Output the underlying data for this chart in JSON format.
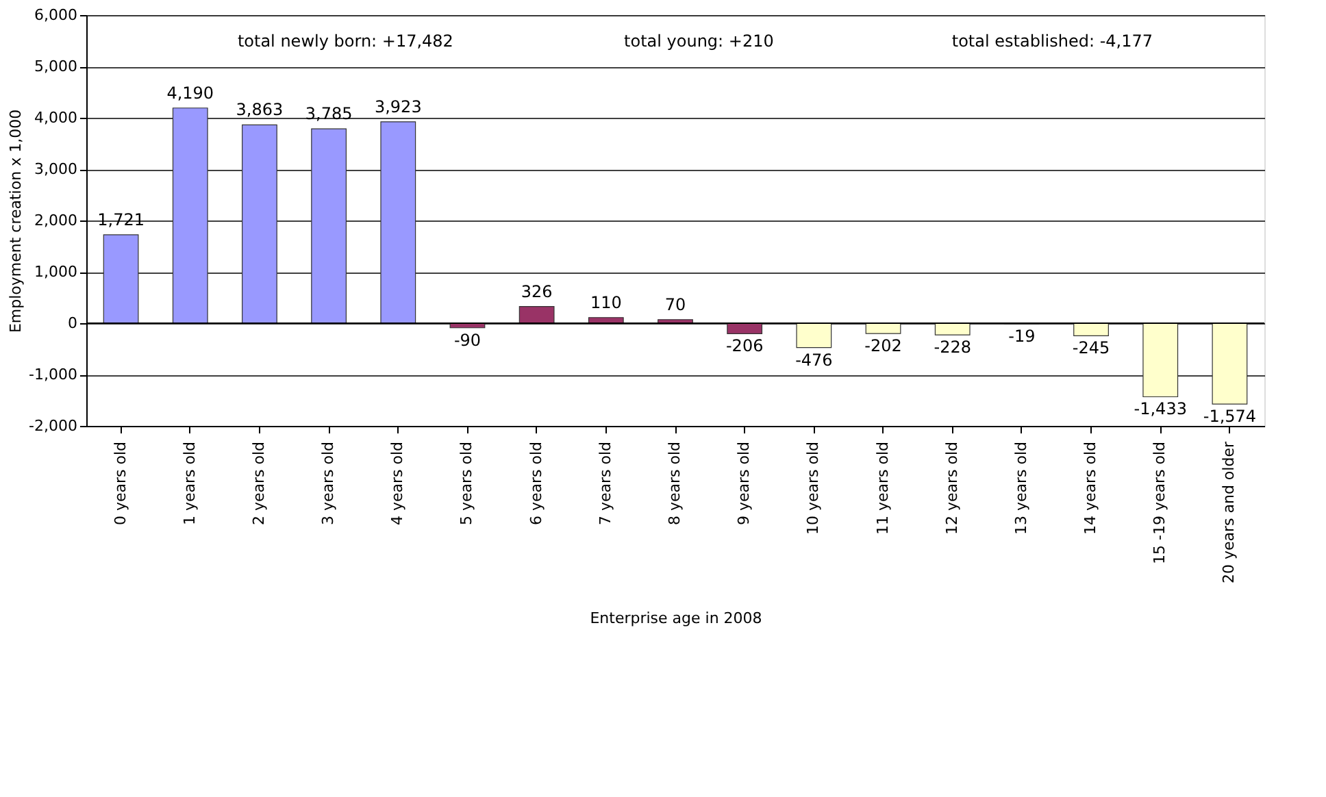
{
  "chart_data": {
    "type": "bar",
    "xlabel": "Enterprise age in 2008",
    "ylabel": "Employment creation x 1,000",
    "categories": [
      "0 years old",
      "1 years old",
      "2 years old",
      "3 years old",
      "4 years old",
      "5 years old",
      "6 years old",
      "7 years old",
      "8 years old",
      "9 years old",
      "10 years old",
      "11 years old",
      "12 years old",
      "13 years old",
      "14 years old",
      "15 -19 years old",
      "20 years and older"
    ],
    "values": [
      1721,
      4190,
      3863,
      3785,
      3923,
      -90,
      326,
      110,
      70,
      -206,
      -476,
      -202,
      -228,
      -19,
      -245,
      -1433,
      -1574
    ],
    "value_labels": [
      "1,721",
      "4,190",
      "3,863",
      "3,785",
      "3,923",
      "-90",
      "326",
      "110",
      "70",
      "-206",
      "-476",
      "-202",
      "-228",
      "-19",
      "-245",
      "-1,433",
      "-1,574"
    ],
    "colors": [
      "#9999ff",
      "#9999ff",
      "#9999ff",
      "#9999ff",
      "#9999ff",
      "#993366",
      "#993366",
      "#993366",
      "#993366",
      "#993366",
      "#ffffcc",
      "#ffffcc",
      "#ffffcc",
      "#ffffcc",
      "#ffffcc",
      "#ffffcc",
      "#ffffcc"
    ],
    "ylim": [
      -2000,
      6000
    ],
    "yticks": [
      {
        "value": -2000,
        "label": "-2,000"
      },
      {
        "value": -1000,
        "label": "-1,000"
      },
      0,
      {
        "value": 1000,
        "label": "1,000"
      },
      {
        "value": 2000,
        "label": "2,000"
      },
      {
        "value": 3000,
        "label": "3,000"
      },
      {
        "value": 4000,
        "label": "4,000"
      },
      {
        "value": 5000,
        "label": "5,000"
      },
      {
        "value": 6000,
        "label": "6,000"
      }
    ],
    "grid": "y",
    "annotations": [
      "total newly born:  +17,482",
      "total young:  +210",
      "total established:  -4,177"
    ]
  }
}
